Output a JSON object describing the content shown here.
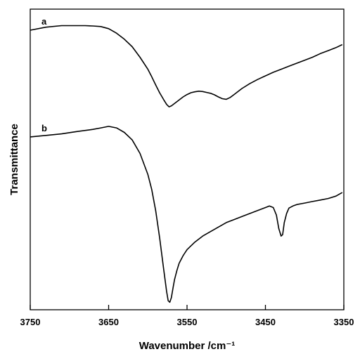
{
  "chart_data": {
    "type": "line",
    "title": "",
    "xlabel": "Wavenumber /cm⁻¹",
    "ylabel": "Transmittance",
    "xlim": [
      3750,
      3350
    ],
    "x_reversed": true,
    "ylim": [
      0,
      1
    ],
    "y_ticks_shown": false,
    "grid": false,
    "legend": "none",
    "x_ticks": [
      3750,
      3650,
      3550,
      3450,
      3350
    ],
    "x_tick_labels": [
      "3750",
      "3650",
      "3550",
      "3450",
      "3350"
    ],
    "series": [
      {
        "name": "a",
        "color": "#000000",
        "x": [
          3750,
          3730,
          3710,
          3700,
          3690,
          3680,
          3670,
          3660,
          3650,
          3640,
          3630,
          3620,
          3610,
          3600,
          3595,
          3590,
          3585,
          3580,
          3576,
          3573,
          3570,
          3565,
          3560,
          3555,
          3550,
          3545,
          3540,
          3535,
          3530,
          3525,
          3520,
          3515,
          3510,
          3505,
          3500,
          3495,
          3490,
          3480,
          3470,
          3460,
          3450,
          3440,
          3430,
          3420,
          3410,
          3400,
          3390,
          3380,
          3370,
          3360,
          3352
        ],
        "y": [
          0.93,
          0.94,
          0.945,
          0.945,
          0.945,
          0.945,
          0.944,
          0.942,
          0.935,
          0.92,
          0.9,
          0.875,
          0.84,
          0.8,
          0.775,
          0.748,
          0.722,
          0.7,
          0.683,
          0.675,
          0.678,
          0.688,
          0.698,
          0.708,
          0.716,
          0.722,
          0.725,
          0.727,
          0.726,
          0.723,
          0.72,
          0.715,
          0.708,
          0.702,
          0.7,
          0.706,
          0.716,
          0.736,
          0.752,
          0.766,
          0.778,
          0.79,
          0.8,
          0.81,
          0.82,
          0.83,
          0.84,
          0.852,
          0.862,
          0.872,
          0.882
        ]
      },
      {
        "name": "b",
        "color": "#000000",
        "x": [
          3750,
          3730,
          3710,
          3690,
          3670,
          3660,
          3650,
          3640,
          3630,
          3620,
          3610,
          3600,
          3595,
          3590,
          3585,
          3580,
          3576,
          3574,
          3572,
          3570,
          3568,
          3566,
          3563,
          3560,
          3555,
          3550,
          3540,
          3530,
          3520,
          3510,
          3500,
          3490,
          3480,
          3470,
          3460,
          3450,
          3445,
          3440,
          3436,
          3433,
          3430,
          3428,
          3426,
          3423,
          3420,
          3415,
          3410,
          3400,
          3390,
          3380,
          3370,
          3360,
          3352
        ],
        "y": [
          0.575,
          0.58,
          0.585,
          0.593,
          0.6,
          0.605,
          0.61,
          0.605,
          0.59,
          0.565,
          0.52,
          0.45,
          0.4,
          0.33,
          0.24,
          0.14,
          0.06,
          0.03,
          0.025,
          0.04,
          0.07,
          0.1,
          0.13,
          0.155,
          0.18,
          0.2,
          0.225,
          0.245,
          0.26,
          0.275,
          0.29,
          0.3,
          0.31,
          0.32,
          0.33,
          0.34,
          0.345,
          0.34,
          0.315,
          0.27,
          0.245,
          0.25,
          0.29,
          0.32,
          0.338,
          0.345,
          0.35,
          0.355,
          0.36,
          0.365,
          0.37,
          0.378,
          0.39
        ]
      }
    ]
  }
}
